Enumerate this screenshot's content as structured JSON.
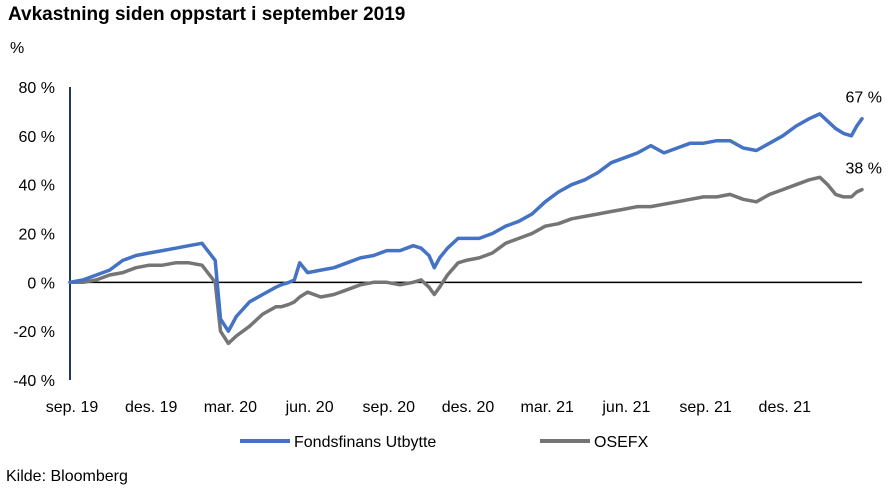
{
  "title": "Avkastning siden oppstart i september 2019",
  "unit": "%",
  "source": "Kilde: Bloomberg",
  "chart_data": {
    "type": "line",
    "x_ticks": [
      "sep. 19",
      "des. 19",
      "mar. 20",
      "jun. 20",
      "sep. 20",
      "des. 20",
      "mar. 21",
      "jun. 21",
      "sep. 21",
      "des. 21"
    ],
    "y_ticks": [
      "80 %",
      "60 %",
      "40 %",
      "20 %",
      "0 %",
      "-20 %",
      "-40 %"
    ],
    "ylim": [
      -40,
      80
    ],
    "grid": false,
    "legend_position": "bottom",
    "x_unit": "months since sep. 19",
    "series": [
      {
        "name": "Fondsfinans Utbytte",
        "color": "#4472c4",
        "end_label": "67 %",
        "points": [
          [
            0,
            0
          ],
          [
            0.5,
            1
          ],
          [
            1,
            3
          ],
          [
            1.5,
            5
          ],
          [
            2,
            9
          ],
          [
            2.5,
            11
          ],
          [
            3,
            12
          ],
          [
            3.5,
            13
          ],
          [
            4,
            14
          ],
          [
            4.5,
            15
          ],
          [
            5,
            16
          ],
          [
            5.5,
            9
          ],
          [
            5.7,
            -15
          ],
          [
            6,
            -20
          ],
          [
            6.3,
            -14
          ],
          [
            6.8,
            -8
          ],
          [
            7.3,
            -5
          ],
          [
            7.8,
            -2
          ],
          [
            8,
            -1
          ],
          [
            8.3,
            0
          ],
          [
            8.5,
            1
          ],
          [
            8.7,
            8
          ],
          [
            9,
            4
          ],
          [
            9.5,
            5
          ],
          [
            10,
            6
          ],
          [
            10.5,
            8
          ],
          [
            11,
            10
          ],
          [
            11.5,
            11
          ],
          [
            12,
            13
          ],
          [
            12.5,
            13
          ],
          [
            13,
            15
          ],
          [
            13.3,
            14
          ],
          [
            13.6,
            11
          ],
          [
            13.8,
            6
          ],
          [
            14,
            10
          ],
          [
            14.3,
            14
          ],
          [
            14.7,
            18
          ],
          [
            15,
            18
          ],
          [
            15.5,
            18
          ],
          [
            16,
            20
          ],
          [
            16.5,
            23
          ],
          [
            17,
            25
          ],
          [
            17.5,
            28
          ],
          [
            18,
            33
          ],
          [
            18.5,
            37
          ],
          [
            19,
            40
          ],
          [
            19.5,
            42
          ],
          [
            20,
            45
          ],
          [
            20.5,
            49
          ],
          [
            21,
            51
          ],
          [
            21.5,
            53
          ],
          [
            22,
            56
          ],
          [
            22.5,
            53
          ],
          [
            23,
            55
          ],
          [
            23.5,
            57
          ],
          [
            24,
            57
          ],
          [
            24.5,
            58
          ],
          [
            25,
            58
          ],
          [
            25.5,
            55
          ],
          [
            26,
            54
          ],
          [
            26.5,
            57
          ],
          [
            27,
            60
          ],
          [
            27.5,
            64
          ],
          [
            28,
            67
          ],
          [
            28.4,
            69
          ],
          [
            28.7,
            66
          ],
          [
            29,
            63
          ],
          [
            29.3,
            61
          ],
          [
            29.6,
            60
          ],
          [
            29.8,
            64
          ],
          [
            30,
            67
          ]
        ]
      },
      {
        "name": "OSEFX",
        "color": "#757575",
        "end_label": "38 %",
        "points": [
          [
            0,
            0
          ],
          [
            0.5,
            0
          ],
          [
            1,
            1
          ],
          [
            1.5,
            3
          ],
          [
            2,
            4
          ],
          [
            2.5,
            6
          ],
          [
            3,
            7
          ],
          [
            3.5,
            7
          ],
          [
            4,
            8
          ],
          [
            4.5,
            8
          ],
          [
            5,
            7
          ],
          [
            5.5,
            0
          ],
          [
            5.7,
            -20
          ],
          [
            6,
            -25
          ],
          [
            6.3,
            -22
          ],
          [
            6.8,
            -18
          ],
          [
            7.3,
            -13
          ],
          [
            7.8,
            -10
          ],
          [
            8,
            -10
          ],
          [
            8.3,
            -9
          ],
          [
            8.5,
            -8
          ],
          [
            8.7,
            -6
          ],
          [
            9,
            -4
          ],
          [
            9.5,
            -6
          ],
          [
            10,
            -5
          ],
          [
            10.5,
            -3
          ],
          [
            11,
            -1
          ],
          [
            11.5,
            0
          ],
          [
            12,
            0
          ],
          [
            12.5,
            -1
          ],
          [
            13,
            0
          ],
          [
            13.3,
            1
          ],
          [
            13.6,
            -2
          ],
          [
            13.8,
            -5
          ],
          [
            14,
            -2
          ],
          [
            14.3,
            3
          ],
          [
            14.7,
            8
          ],
          [
            15,
            9
          ],
          [
            15.5,
            10
          ],
          [
            16,
            12
          ],
          [
            16.5,
            16
          ],
          [
            17,
            18
          ],
          [
            17.5,
            20
          ],
          [
            18,
            23
          ],
          [
            18.5,
            24
          ],
          [
            19,
            26
          ],
          [
            19.5,
            27
          ],
          [
            20,
            28
          ],
          [
            20.5,
            29
          ],
          [
            21,
            30
          ],
          [
            21.5,
            31
          ],
          [
            22,
            31
          ],
          [
            22.5,
            32
          ],
          [
            23,
            33
          ],
          [
            23.5,
            34
          ],
          [
            24,
            35
          ],
          [
            24.5,
            35
          ],
          [
            25,
            36
          ],
          [
            25.5,
            34
          ],
          [
            26,
            33
          ],
          [
            26.5,
            36
          ],
          [
            27,
            38
          ],
          [
            27.5,
            40
          ],
          [
            28,
            42
          ],
          [
            28.4,
            43
          ],
          [
            28.7,
            40
          ],
          [
            29,
            36
          ],
          [
            29.3,
            35
          ],
          [
            29.6,
            35
          ],
          [
            29.8,
            37
          ],
          [
            30,
            38
          ]
        ]
      }
    ]
  }
}
